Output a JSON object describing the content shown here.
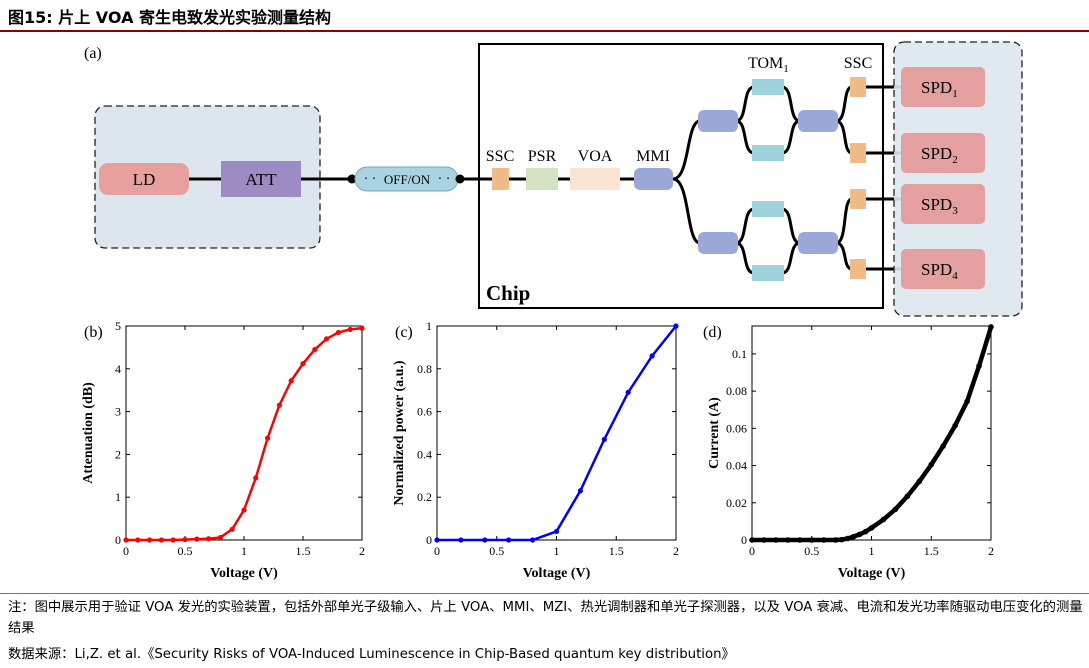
{
  "header": {
    "title": "图15:  片上 VOA 寄生电致发光实验测量结构"
  },
  "diagram": {
    "panel_label": "(a)",
    "ld": "LD",
    "att": "ATT",
    "offon": "OFF/ON",
    "ssc_in": "SSC",
    "psr": "PSR",
    "voa": "VOA",
    "mmi": "MMI",
    "tom": "TOM",
    "tom_sub": "1",
    "ssc_out": "SSC",
    "chip": "Chip",
    "spd": [
      {
        "base": "SPD",
        "sub": "1"
      },
      {
        "base": "SPD",
        "sub": "2"
      },
      {
        "base": "SPD",
        "sub": "3"
      },
      {
        "base": "SPD",
        "sub": "4"
      }
    ],
    "colors": {
      "ld": "#e8a09c",
      "att": "#9d8cc4",
      "link": "#a9d3e0",
      "ssc": "#f0bb85",
      "psr": "#d3e2c0",
      "voa": "#fbe3d2",
      "mmi": "#9aa8d8",
      "tom": "#9ed3dd",
      "spd": "#e3a09e",
      "panel_bg": "#dde6ee"
    }
  },
  "chart_data": [
    {
      "type": "line",
      "panel_label": "(b)",
      "ylabel": "Attenuation (dB)",
      "xlabel": "Voltage (V)",
      "x_ticks": [
        "0",
        "0.5",
        "1",
        "1.5",
        "2"
      ],
      "y_ticks": [
        "0",
        "1",
        "2",
        "3",
        "4",
        "5"
      ],
      "xlim": [
        0,
        2
      ],
      "ylim": [
        0,
        5
      ],
      "color": "#ff0000",
      "x": [
        0,
        0.1,
        0.2,
        0.3,
        0.4,
        0.5,
        0.6,
        0.7,
        0.8,
        0.9,
        1.0,
        1.1,
        1.2,
        1.3,
        1.4,
        1.5,
        1.6,
        1.7,
        1.8,
        1.9,
        2.0
      ],
      "y": [
        0,
        0,
        0,
        0,
        0,
        0.01,
        0.02,
        0.03,
        0.06,
        0.25,
        0.7,
        1.45,
        2.38,
        3.15,
        3.72,
        4.12,
        4.45,
        4.7,
        4.85,
        4.92,
        4.95
      ]
    },
    {
      "type": "line",
      "panel_label": "(c)",
      "ylabel": "Normalized power (a.u.)",
      "xlabel": "Voltage (V)",
      "x_ticks": [
        "0",
        "0.5",
        "1",
        "1.5",
        "2"
      ],
      "y_ticks": [
        "0",
        "0.2",
        "0.4",
        "0.6",
        "0.8",
        "1"
      ],
      "xlim": [
        0,
        2
      ],
      "ylim": [
        0,
        1
      ],
      "color": "#0000ff",
      "x": [
        0,
        0.2,
        0.4,
        0.6,
        0.8,
        1.0,
        1.2,
        1.4,
        1.6,
        1.8,
        2.0
      ],
      "y": [
        0,
        0,
        0,
        0,
        0,
        0.04,
        0.23,
        0.47,
        0.69,
        0.86,
        1.0
      ]
    },
    {
      "type": "scatter",
      "panel_label": "(d)",
      "ylabel": "Current (A)",
      "xlabel": "Voltage (V)",
      "x_ticks": [
        "0",
        "0.5",
        "1",
        "1.5",
        "2"
      ],
      "y_ticks": [
        "0",
        "0.02",
        "0.04",
        "0.06",
        "0.08",
        "0.1"
      ],
      "xlim": [
        0,
        2
      ],
      "ylim": [
        0,
        0.115
      ],
      "color": "#000000",
      "x": [
        0,
        0.1,
        0.2,
        0.3,
        0.4,
        0.5,
        0.6,
        0.7,
        0.75,
        0.8,
        0.85,
        0.9,
        0.95,
        1.0,
        1.1,
        1.2,
        1.3,
        1.4,
        1.5,
        1.6,
        1.7,
        1.8,
        1.9,
        2.0
      ],
      "y": [
        0,
        0,
        0,
        0,
        0,
        0,
        0,
        0,
        0.0002,
        0.0008,
        0.0018,
        0.003,
        0.0045,
        0.0065,
        0.011,
        0.0165,
        0.0235,
        0.0315,
        0.0405,
        0.0505,
        0.0615,
        0.0745,
        0.0935,
        0.1145
      ]
    }
  ],
  "footer": {
    "note": "注：图中展示用于验证 VOA 发光的实验装置，包括外部单光子级输入、片上 VOA、MMI、MZI、热光调制器和单光子探测器，以及 VOA 衰减、电流和发光功率随驱动电压变化的测量结果",
    "source": "数据来源：Li,Z. et al.《Security Risks of VOA-Induced Luminescence in Chip-Based quantum key distribution》"
  }
}
